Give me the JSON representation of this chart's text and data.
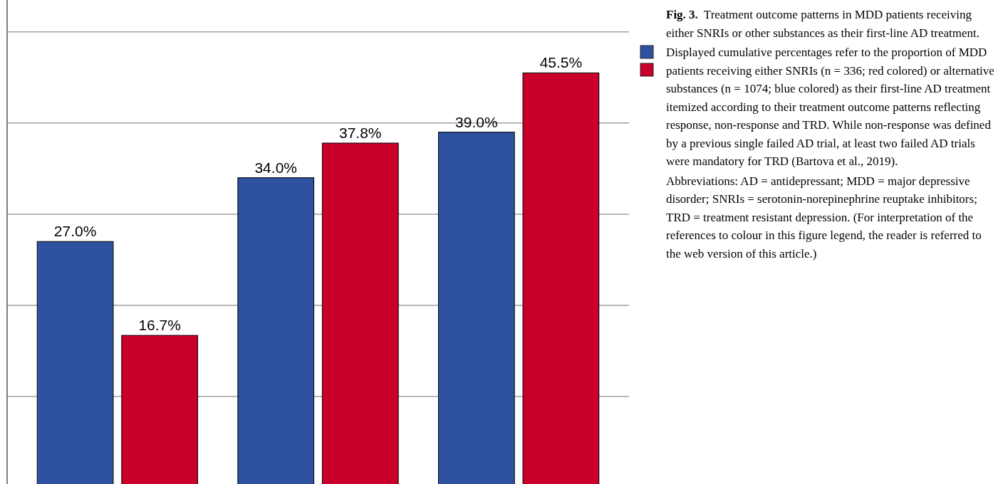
{
  "chart_data": {
    "type": "bar",
    "title": "Fig. 3.",
    "annotations": [
      "Treatment outcome patterns in MDD patients receiving either SNRIs or other substances as their first-line AD treatment.",
      "Displayed cumulative percentages refer to the proportion of MDD patients receiving either SNRIs (n = 336; red colored) or alternative substances (n = 1074; blue colored) as their first-line AD treatment itemized according to their treatment outcome patterns reflecting response, non-response and TRD. While non-response was defined by a previous single failed AD trial, at least two failed AD trials were mandatory for TRD (Bartova et al., 2019).",
      "Abbreviations: AD = antidepressant; MDD = major depressive disorder; SNRIs = serotonin-norepinephrine reuptake inhibitors; TRD = treatment resistant depression. (For interpretation of the references to colour in this figure legend, the reader is referred to the web version of this article.)"
    ],
    "categories": [
      null,
      null,
      null
    ],
    "series": [
      {
        "color": "#2f52a0",
        "values": [
          27.0,
          34.0,
          39.0
        ],
        "value_labels": [
          "27.0%",
          "34.0%",
          "39.0%"
        ]
      },
      {
        "color": "#c8002a",
        "values": [
          16.7,
          37.8,
          45.5
        ],
        "value_labels": [
          "16.7%",
          "37.8%",
          "45.5%"
        ]
      }
    ],
    "ylim": [
      0,
      53.5
    ],
    "yticks": [
      {
        "value": 10,
        "label": null
      },
      {
        "value": 20,
        "label": null
      },
      {
        "value": 30,
        "label": null
      },
      {
        "value": 40,
        "label": null
      },
      {
        "value": 50,
        "label": null
      }
    ],
    "grid": "y",
    "relative": false
  }
}
